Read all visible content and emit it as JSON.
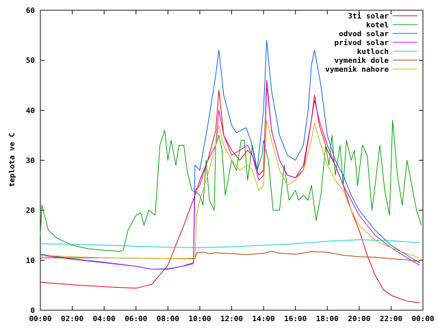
{
  "chart_data": {
    "type": "line",
    "title": "",
    "xlabel": "",
    "ylabel": "teplota ve C",
    "xlim": [
      0,
      24
    ],
    "ylim": [
      0,
      60
    ],
    "x_ticks": [
      "00:00",
      "02:00",
      "04:00",
      "06:00",
      "08:00",
      "10:00",
      "12:00",
      "14:00",
      "16:00",
      "18:00",
      "20:00",
      "22:00",
      "00:00"
    ],
    "y_ticks": [
      "0",
      "10",
      "20",
      "30",
      "40",
      "50",
      "60"
    ],
    "grid": false,
    "legend_position": "top-right",
    "series": [
      {
        "name": "3ti solar",
        "color": "#dd0000",
        "points": [
          [
            0,
            5.6
          ],
          [
            2,
            5.1
          ],
          [
            4,
            4.7
          ],
          [
            6,
            4.4
          ],
          [
            7,
            5.2
          ],
          [
            8,
            9
          ],
          [
            9,
            17
          ],
          [
            9.7,
            23
          ],
          [
            10,
            26
          ],
          [
            10.5,
            30
          ],
          [
            11,
            36
          ],
          [
            11.2,
            44
          ],
          [
            11.5,
            35
          ],
          [
            12,
            32
          ],
          [
            12.5,
            30
          ],
          [
            13,
            32
          ],
          [
            13.3,
            31
          ],
          [
            13.7,
            27
          ],
          [
            14,
            28
          ],
          [
            14.2,
            46
          ],
          [
            14.5,
            36
          ],
          [
            15,
            30
          ],
          [
            15.5,
            27
          ],
          [
            16,
            26.5
          ],
          [
            16.5,
            28
          ],
          [
            17,
            38
          ],
          [
            17.2,
            43
          ],
          [
            17.5,
            37
          ],
          [
            18,
            32
          ],
          [
            18.5,
            29
          ],
          [
            19,
            25
          ],
          [
            19.5,
            20
          ],
          [
            20,
            16
          ],
          [
            20.5,
            11
          ],
          [
            21,
            7
          ],
          [
            21.5,
            4.2
          ],
          [
            22,
            3
          ],
          [
            23,
            1.8
          ],
          [
            23.8,
            1.5
          ]
        ]
      },
      {
        "name": "kotel",
        "color": "#00a000",
        "points": [
          [
            0,
            15
          ],
          [
            0.1,
            21
          ],
          [
            0.5,
            16
          ],
          [
            1,
            14.5
          ],
          [
            2,
            13
          ],
          [
            3,
            12.3
          ],
          [
            4,
            12
          ],
          [
            5,
            11.8
          ],
          [
            5.2,
            12
          ],
          [
            5.5,
            16
          ],
          [
            6,
            19
          ],
          [
            6.3,
            19.5
          ],
          [
            6.5,
            17
          ],
          [
            6.8,
            20
          ],
          [
            7.2,
            19
          ],
          [
            7.5,
            33
          ],
          [
            7.8,
            36
          ],
          [
            8,
            30
          ],
          [
            8.2,
            34
          ],
          [
            8.5,
            29
          ],
          [
            8.7,
            33
          ],
          [
            9,
            33
          ],
          [
            9.2,
            28
          ],
          [
            9.5,
            24
          ],
          [
            9.8,
            23.5
          ],
          [
            10,
            23
          ],
          [
            10.2,
            21
          ],
          [
            10.4,
            30
          ],
          [
            10.6,
            22
          ],
          [
            10.9,
            20
          ],
          [
            11,
            33
          ],
          [
            11.2,
            35
          ],
          [
            11.4,
            32
          ],
          [
            11.6,
            23
          ],
          [
            12,
            30
          ],
          [
            12.3,
            28
          ],
          [
            12.6,
            34
          ],
          [
            12.8,
            34
          ],
          [
            13,
            26
          ],
          [
            13.3,
            33
          ],
          [
            13.6,
            28
          ],
          [
            13.9,
            31
          ],
          [
            14,
            34
          ],
          [
            14.3,
            30
          ],
          [
            14.6,
            20
          ],
          [
            15,
            20
          ],
          [
            15.3,
            29
          ],
          [
            15.6,
            22
          ],
          [
            16,
            24
          ],
          [
            16.2,
            22
          ],
          [
            16.5,
            23
          ],
          [
            16.8,
            22
          ],
          [
            17,
            25
          ],
          [
            17.3,
            18
          ],
          [
            17.6,
            23
          ],
          [
            17.9,
            33
          ],
          [
            18.1,
            29
          ],
          [
            18.3,
            35
          ],
          [
            18.5,
            27
          ],
          [
            18.8,
            33
          ],
          [
            19,
            25
          ],
          [
            19.2,
            34
          ],
          [
            19.5,
            30
          ],
          [
            19.7,
            32
          ],
          [
            19.9,
            25
          ],
          [
            20.2,
            33
          ],
          [
            20.5,
            31
          ],
          [
            20.8,
            20
          ],
          [
            21,
            25
          ],
          [
            21.3,
            33
          ],
          [
            21.6,
            24
          ],
          [
            21.9,
            19
          ],
          [
            22.1,
            38
          ],
          [
            22.4,
            27
          ],
          [
            22.7,
            21
          ],
          [
            23,
            30
          ],
          [
            23.3,
            25
          ],
          [
            23.6,
            20
          ],
          [
            23.9,
            17
          ]
        ]
      },
      {
        "name": "odvod solar",
        "color": "#0060dd",
        "points": [
          [
            0,
            11.2
          ],
          [
            2,
            10.3
          ],
          [
            4,
            9.6
          ],
          [
            6,
            8.8
          ],
          [
            7,
            8.2
          ],
          [
            8,
            8.3
          ],
          [
            8.8,
            8.7
          ],
          [
            9.6,
            9.5
          ],
          [
            9.7,
            29
          ],
          [
            10,
            28
          ],
          [
            10.5,
            37
          ],
          [
            11,
            47
          ],
          [
            11.2,
            52
          ],
          [
            11.5,
            43
          ],
          [
            12,
            37
          ],
          [
            12.3,
            35.5
          ],
          [
            12.6,
            36
          ],
          [
            12.9,
            36.5
          ],
          [
            13.2,
            34
          ],
          [
            13.6,
            28
          ],
          [
            14,
            40
          ],
          [
            14.2,
            54
          ],
          [
            14.5,
            44
          ],
          [
            15,
            35
          ],
          [
            15.5,
            31
          ],
          [
            16,
            30
          ],
          [
            16.5,
            33
          ],
          [
            16.8,
            40
          ],
          [
            17,
            49
          ],
          [
            17.2,
            52
          ],
          [
            17.6,
            45
          ],
          [
            18,
            35
          ],
          [
            18.5,
            30
          ],
          [
            19,
            27
          ],
          [
            19.5,
            23
          ],
          [
            20,
            20
          ],
          [
            21,
            16
          ],
          [
            22,
            13
          ],
          [
            23,
            11
          ],
          [
            23.8,
            9.5
          ]
        ]
      },
      {
        "name": "privod solar",
        "color": "#cc00cc",
        "points": [
          [
            0,
            11
          ],
          [
            2,
            10.2
          ],
          [
            4,
            9.5
          ],
          [
            6,
            8.8
          ],
          [
            7,
            8.2
          ],
          [
            8,
            8.2
          ],
          [
            8.8,
            8.7
          ],
          [
            9.6,
            9.3
          ],
          [
            9.7,
            24
          ],
          [
            10,
            25
          ],
          [
            10.5,
            30
          ],
          [
            11,
            33
          ],
          [
            11.2,
            40
          ],
          [
            11.5,
            35
          ],
          [
            12,
            31
          ],
          [
            12.5,
            32
          ],
          [
            13,
            33
          ],
          [
            13.3,
            31
          ],
          [
            13.7,
            26
          ],
          [
            14,
            27
          ],
          [
            14.2,
            45
          ],
          [
            14.5,
            36
          ],
          [
            15,
            30
          ],
          [
            15.5,
            27
          ],
          [
            16,
            26.5
          ],
          [
            16.5,
            29
          ],
          [
            17,
            38
          ],
          [
            17.2,
            42
          ],
          [
            17.5,
            38
          ],
          [
            18,
            33
          ],
          [
            18.5,
            29
          ],
          [
            19,
            25
          ],
          [
            19.5,
            22
          ],
          [
            20,
            19
          ],
          [
            21,
            15
          ],
          [
            22,
            12.5
          ],
          [
            23,
            10.5
          ],
          [
            23.8,
            9
          ]
        ]
      },
      {
        "name": "kutloch",
        "color": "#00cccc",
        "points": [
          [
            0,
            13.3
          ],
          [
            2,
            13.2
          ],
          [
            4,
            13
          ],
          [
            6,
            12.8
          ],
          [
            8,
            12.6
          ],
          [
            10,
            12.5
          ],
          [
            12,
            12.7
          ],
          [
            14,
            13
          ],
          [
            16,
            13.3
          ],
          [
            18,
            13.8
          ],
          [
            20,
            14.1
          ],
          [
            22,
            13.9
          ],
          [
            23.8,
            13.5
          ]
        ]
      },
      {
        "name": "vymenik dole",
        "color": "#a04000",
        "points": [
          [
            0,
            10.5
          ],
          [
            2,
            10.5
          ],
          [
            4,
            10.5
          ],
          [
            6,
            10.4
          ],
          [
            8,
            10.3
          ],
          [
            9.7,
            10.3
          ],
          [
            9.8,
            11.5
          ],
          [
            10.3,
            11.6
          ],
          [
            10.6,
            11.3
          ],
          [
            11,
            11.5
          ],
          [
            12,
            11.3
          ],
          [
            13,
            11.1
          ],
          [
            14,
            11.4
          ],
          [
            14.5,
            11.8
          ],
          [
            15,
            11.4
          ],
          [
            16,
            11.2
          ],
          [
            17,
            11.7
          ],
          [
            18,
            11.6
          ],
          [
            19,
            11
          ],
          [
            20,
            10.7
          ],
          [
            21,
            10.6
          ],
          [
            22,
            10.3
          ],
          [
            23,
            10.1
          ],
          [
            23.8,
            9.7
          ]
        ]
      },
      {
        "name": "vymenik nahore",
        "color": "#ccb000",
        "points": [
          [
            0,
            11
          ],
          [
            2,
            10.7
          ],
          [
            4,
            10.5
          ],
          [
            6,
            10.4
          ],
          [
            8,
            10.3
          ],
          [
            9.7,
            10.4
          ],
          [
            9.8,
            19
          ],
          [
            10,
            22
          ],
          [
            10.5,
            27
          ],
          [
            11,
            33
          ],
          [
            11.2,
            37
          ],
          [
            11.5,
            33
          ],
          [
            12,
            30
          ],
          [
            12.5,
            28
          ],
          [
            13,
            29
          ],
          [
            13.3,
            28
          ],
          [
            13.7,
            24
          ],
          [
            14,
            25
          ],
          [
            14.2,
            38
          ],
          [
            14.5,
            34
          ],
          [
            15,
            28
          ],
          [
            15.5,
            25
          ],
          [
            16,
            26
          ],
          [
            16.5,
            28
          ],
          [
            17,
            34
          ],
          [
            17.2,
            37.5
          ],
          [
            17.5,
            34
          ],
          [
            18,
            29
          ],
          [
            18.5,
            26
          ],
          [
            19,
            24
          ],
          [
            19.5,
            20
          ],
          [
            20,
            17
          ],
          [
            21,
            14
          ],
          [
            22,
            12.5
          ],
          [
            23,
            11.3
          ],
          [
            23.8,
            10.5
          ]
        ]
      }
    ]
  }
}
